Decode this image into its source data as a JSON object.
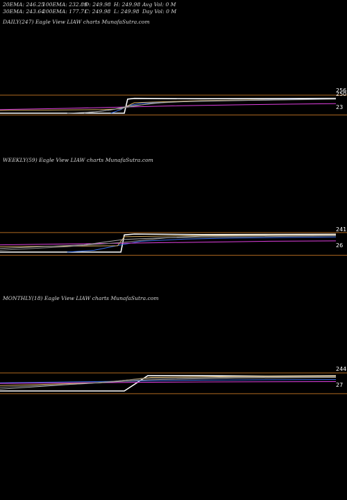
{
  "header": {
    "row1": [
      "20EMA: 246.25",
      "100EMA: 232.89",
      "O: 249.98",
      "H: 249.98",
      "Avg Vol: 0  M"
    ],
    "row2": [
      "30EMA: 243.64",
      "200EMA: 177.71",
      "C: 249.98",
      "L: 249.98",
      "Day Vol: 0  M"
    ]
  },
  "chart_data": [
    {
      "type": "line",
      "label": "DAILY(247) Eagle   View  LIAW charts MunafaSutra.com",
      "ytick_labels": [
        "256",
        "250",
        "23"
      ],
      "series": [
        {
          "color": "#ffffff",
          "points": [
            [
              0,
              0
            ],
            [
              0.37,
              0
            ],
            [
              0.38,
              0.78
            ],
            [
              0.4,
              0.82
            ],
            [
              0.6,
              0.8
            ],
            [
              0.8,
              0.81
            ],
            [
              1,
              0.82
            ]
          ]
        },
        {
          "color": "#3b6fe8",
          "points": [
            [
              0.33,
              0
            ],
            [
              0.36,
              0.2
            ],
            [
              0.38,
              0.42
            ],
            [
              0.42,
              0.55
            ],
            [
              0.55,
              0.66
            ],
            [
              0.7,
              0.72
            ],
            [
              0.85,
              0.76
            ],
            [
              1,
              0.79
            ]
          ]
        },
        {
          "color": "#e040e0",
          "points": [
            [
              0,
              0.2
            ],
            [
              0.2,
              0.27
            ],
            [
              0.35,
              0.33
            ],
            [
              0.5,
              0.4
            ],
            [
              0.7,
              0.46
            ],
            [
              0.85,
              0.5
            ],
            [
              1,
              0.53
            ]
          ]
        },
        {
          "color": "#d8b060",
          "points": [
            [
              0,
              0.15
            ],
            [
              0.3,
              0.2
            ],
            [
              0.36,
              0.24
            ],
            [
              0.4,
              0.58
            ],
            [
              0.6,
              0.7
            ],
            [
              1,
              0.78
            ]
          ]
        },
        {
          "color": "#888888",
          "points": [
            [
              0.2,
              0
            ],
            [
              0.3,
              0.1
            ],
            [
              0.37,
              0.3
            ],
            [
              0.45,
              0.55
            ],
            [
              0.6,
              0.68
            ],
            [
              1,
              0.77
            ]
          ]
        },
        {
          "color": "#aaaaaa",
          "points": [
            [
              0.25,
              0
            ],
            [
              0.33,
              0.18
            ],
            [
              0.38,
              0.38
            ],
            [
              0.5,
              0.62
            ],
            [
              1,
              0.8
            ]
          ]
        }
      ],
      "hlines": [
        {
          "color": "#b06a20",
          "level": 1.0
        },
        {
          "color": "#b06a20",
          "level": -0.1
        }
      ]
    },
    {
      "type": "line",
      "label": "WEEKLY(59) Eagle   View  LIAW charts MunafaSutra.com",
      "ytick_labels": [
        "241",
        "26"
      ],
      "series": [
        {
          "color": "#ffffff",
          "points": [
            [
              0,
              0
            ],
            [
              0.36,
              0
            ],
            [
              0.37,
              0.95
            ],
            [
              0.4,
              1
            ],
            [
              0.6,
              0.97
            ],
            [
              0.8,
              0.98
            ],
            [
              1,
              0.99
            ]
          ]
        },
        {
          "color": "#3b6fe8",
          "points": [
            [
              0.2,
              0
            ],
            [
              0.28,
              0.1
            ],
            [
              0.36,
              0.4
            ],
            [
              0.42,
              0.6
            ],
            [
              0.55,
              0.72
            ],
            [
              0.7,
              0.78
            ],
            [
              1,
              0.84
            ]
          ]
        },
        {
          "color": "#e040e0",
          "points": [
            [
              0,
              0.4
            ],
            [
              0.2,
              0.45
            ],
            [
              0.4,
              0.5
            ],
            [
              0.6,
              0.55
            ],
            [
              0.8,
              0.6
            ],
            [
              1,
              0.62
            ]
          ]
        },
        {
          "color": "#d8b060",
          "points": [
            [
              0,
              0.3
            ],
            [
              0.35,
              0.35
            ],
            [
              0.37,
              0.85
            ],
            [
              0.6,
              0.92
            ],
            [
              1,
              0.95
            ]
          ]
        },
        {
          "color": "#888888",
          "points": [
            [
              0,
              0.1
            ],
            [
              0.2,
              0.3
            ],
            [
              0.37,
              0.55
            ],
            [
              0.5,
              0.8
            ],
            [
              1,
              0.9
            ]
          ]
        },
        {
          "color": "#aaaaaa",
          "points": [
            [
              0,
              0.2
            ],
            [
              0.25,
              0.4
            ],
            [
              0.37,
              0.7
            ],
            [
              0.6,
              0.88
            ],
            [
              1,
              0.93
            ]
          ]
        }
      ],
      "hlines": [
        {
          "color": "#b06a20",
          "level": 1.08
        },
        {
          "color": "#b06a20",
          "level": -0.18
        }
      ]
    },
    {
      "type": "line",
      "label": "MONTHLY(18) Eagle   View  LIAW charts MunafaSutra.com",
      "ytick_labels": [
        "244",
        "27"
      ],
      "series": [
        {
          "color": "#ffffff",
          "points": [
            [
              0,
              0
            ],
            [
              0.37,
              0
            ],
            [
              0.44,
              0.85
            ],
            [
              0.6,
              0.85
            ],
            [
              0.8,
              0.82
            ],
            [
              1,
              0.84
            ]
          ]
        },
        {
          "color": "#3b6fe8",
          "points": [
            [
              0,
              0.45
            ],
            [
              0.2,
              0.5
            ],
            [
              0.4,
              0.55
            ],
            [
              0.6,
              0.6
            ],
            [
              0.8,
              0.62
            ],
            [
              1,
              0.63
            ]
          ]
        },
        {
          "color": "#e040e0",
          "points": [
            [
              0,
              0.42
            ],
            [
              0.3,
              0.46
            ],
            [
              0.6,
              0.5
            ],
            [
              1,
              0.52
            ]
          ]
        },
        {
          "color": "#d8b060",
          "points": [
            [
              0,
              0.3
            ],
            [
              0.3,
              0.45
            ],
            [
              0.45,
              0.75
            ],
            [
              0.7,
              0.8
            ],
            [
              1,
              0.82
            ]
          ]
        },
        {
          "color": "#888888",
          "points": [
            [
              0,
              0.2
            ],
            [
              0.25,
              0.4
            ],
            [
              0.44,
              0.7
            ],
            [
              0.7,
              0.76
            ],
            [
              1,
              0.78
            ]
          ]
        },
        {
          "color": "#aaaaaa",
          "points": [
            [
              0,
              0.1
            ],
            [
              0.2,
              0.35
            ],
            [
              0.44,
              0.62
            ],
            [
              0.7,
              0.72
            ],
            [
              1,
              0.75
            ]
          ]
        }
      ],
      "hlines": [
        {
          "color": "#b06a20",
          "level": 1.0
        },
        {
          "color": "#b06a20",
          "level": -0.15
        }
      ]
    }
  ]
}
